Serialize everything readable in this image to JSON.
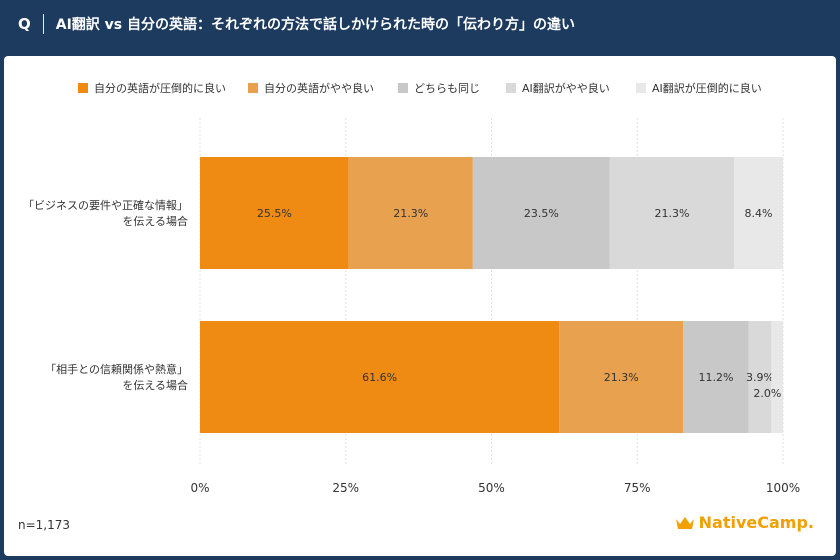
{
  "header": {
    "q_label": "Q",
    "title": "AI翻訳 vs 自分の英語：それぞれの方法で話しかけられた時の「伝わり方」の違い"
  },
  "footer": {
    "sample": "n=1,173",
    "brand": "NativeCamp."
  },
  "colors": {
    "header_bg": "#1d3a5f",
    "s1": "#ef8a12",
    "s2": "#e8a14e",
    "s3": "#c8c8c8",
    "s4": "#d9d9d9",
    "s5": "#e8e8e8"
  },
  "chart_data": {
    "type": "bar",
    "orientation": "horizontal",
    "stacked": true,
    "categories": [
      [
        "「ビジネスの要件や正確な情報」",
        "を伝える場合"
      ],
      [
        "「相手との信頼関係や熱意」",
        "を伝える場合"
      ]
    ],
    "series": [
      {
        "name": "自分の英語が圧倒的に良い",
        "values": [
          25.5,
          61.6
        ],
        "labels": [
          "25.5%",
          "61.6%"
        ]
      },
      {
        "name": "自分の英語がやや良い",
        "values": [
          21.3,
          21.3
        ],
        "labels": [
          "21.3%",
          "21.3%"
        ]
      },
      {
        "name": "どちらも同じ",
        "values": [
          23.5,
          11.2
        ],
        "labels": [
          "23.5%",
          "11.2%"
        ]
      },
      {
        "name": "AI翻訳がやや良い",
        "values": [
          21.3,
          3.9
        ],
        "labels": [
          "21.3%",
          "3.9%"
        ]
      },
      {
        "name": "AI翻訳が圧倒的に良い",
        "values": [
          8.4,
          2.0
        ],
        "labels": [
          "8.4%",
          "2.0%"
        ]
      }
    ],
    "xlim": [
      0,
      100
    ],
    "xticks": [
      "0%",
      "25%",
      "50%",
      "75%",
      "100%"
    ],
    "grid": true,
    "legend_position": "top"
  }
}
